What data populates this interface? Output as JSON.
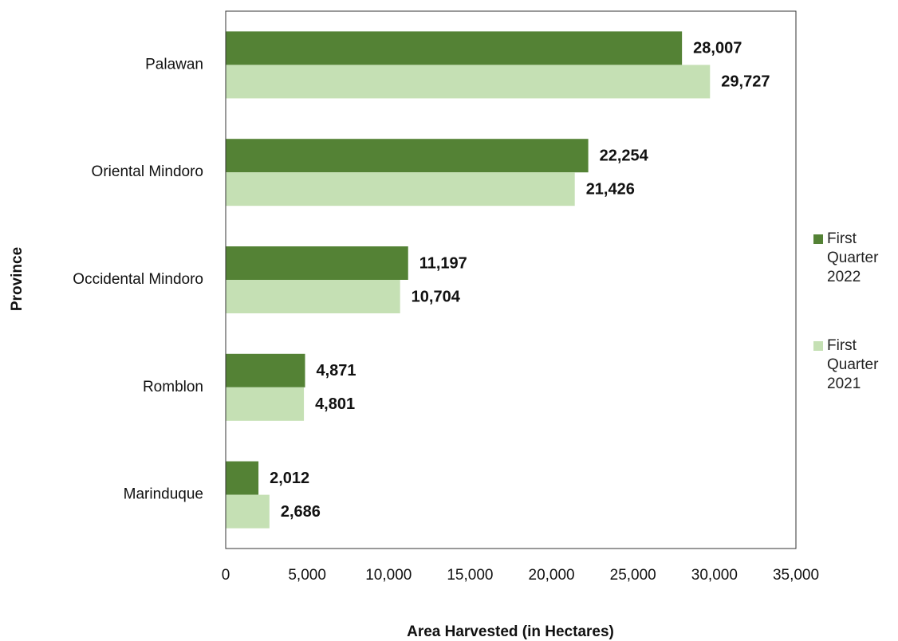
{
  "chart_data": {
    "type": "bar",
    "orientation": "horizontal",
    "x_label": "Area Harvested (in Hectares)",
    "y_label": "Province",
    "categories": [
      "Palawan",
      "Oriental Mindoro",
      "Occidental Mindoro",
      "Romblon",
      "Marinduque"
    ],
    "series": [
      {
        "name": "First Quarter 2022",
        "color": "#548235",
        "values": [
          28007,
          22254,
          11197,
          4871,
          2012
        ],
        "value_labels": [
          "28,007",
          "22,254",
          "11,197",
          "4,871",
          "2,012"
        ]
      },
      {
        "name": "First Quarter 2021",
        "color": "#c5e0b4",
        "values": [
          29727,
          21426,
          10704,
          4801,
          2686
        ],
        "value_labels": [
          "29,727",
          "21,426",
          "10,704",
          "4,801",
          "2,686"
        ]
      }
    ],
    "xlim": [
      0,
      35000
    ],
    "xticks": [
      0,
      {
        "value": 5000,
        "label": "5,000"
      },
      {
        "value": 10000,
        "label": "10,000"
      },
      {
        "value": 15000,
        "label": "15,000"
      },
      {
        "value": 20000,
        "label": "20,000"
      },
      {
        "value": 25000,
        "label": "25,000"
      },
      {
        "value": 30000,
        "label": "30,000"
      },
      {
        "value": 35000,
        "label": "35,000"
      }
    ],
    "legend": "right",
    "grid": false
  }
}
